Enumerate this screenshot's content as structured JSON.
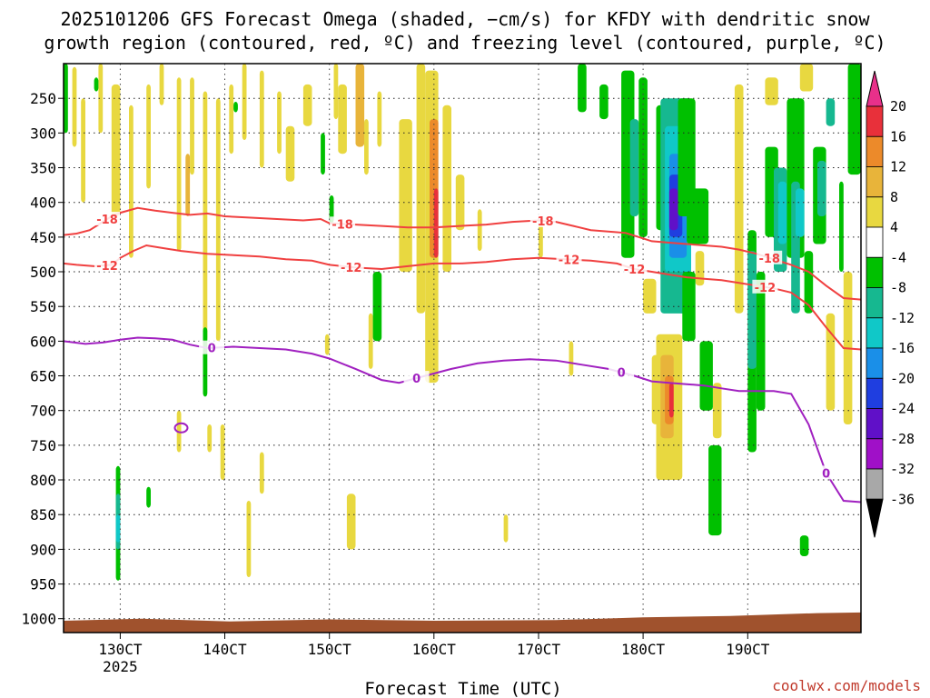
{
  "chart_data": {
    "type": "heatmap",
    "title": "2025101206 GFS Forecast Omega (shaded, −cm/s) for KFDY with dendritic snow growth region (contoured, red, ºC) and freezing level (contoured, purple, ºC)",
    "title_lines": [
      "2025101206 GFS Forecast Omega (shaded, −cm/s) for KFDY with dendritic snow",
      "growth region (contoured, red, ºC) and freezing level (contoured, purple, ºC)"
    ],
    "xlabel": "Forecast Time (UTC)",
    "credit": "coolwx.com/models",
    "x_ticks": [
      {
        "label": "130CT",
        "hour": 180
      },
      {
        "label": "140CT",
        "hour": 204
      },
      {
        "label": "150CT",
        "hour": 228
      },
      {
        "label": "160CT",
        "hour": 252
      },
      {
        "label": "170CT",
        "hour": 276
      },
      {
        "label": "180CT",
        "hour": 300
      },
      {
        "label": "190CT",
        "hour": 324
      }
    ],
    "x_year_label": "2025",
    "x_range_hours": [
      167,
      350
    ],
    "y_ticks": [
      250,
      300,
      350,
      400,
      450,
      500,
      550,
      600,
      650,
      700,
      750,
      800,
      850,
      900,
      950,
      1000
    ],
    "y_range_hpa": [
      200,
      1020
    ],
    "ground_level_hpa": 995,
    "colorbar": {
      "labels": [
        "20",
        "16",
        "12",
        "8",
        "4",
        "-4",
        "-8",
        "-12",
        "-16",
        "-20",
        "-24",
        "-28",
        "-32",
        "-36"
      ],
      "bins": [
        {
          "from": 16,
          "to": 20,
          "color": "#e8303a"
        },
        {
          "from": 12,
          "to": 16,
          "color": "#ec8a2a"
        },
        {
          "from": 8,
          "to": 12,
          "color": "#e8b43a"
        },
        {
          "from": 4,
          "to": 8,
          "color": "#e8d840"
        },
        {
          "from": -4,
          "to": 4,
          "color": "#ffffff"
        },
        {
          "from": -8,
          "to": -4,
          "color": "#00c000"
        },
        {
          "from": -12,
          "to": -8,
          "color": "#16b890"
        },
        {
          "from": -16,
          "to": -12,
          "color": "#10c8c8"
        },
        {
          "from": -20,
          "to": -16,
          "color": "#1a8fe8"
        },
        {
          "from": -24,
          "to": -20,
          "color": "#1f3ee0"
        },
        {
          "from": -28,
          "to": -24,
          "color": "#6010c8"
        },
        {
          "from": -32,
          "to": -28,
          "color": "#a010c8"
        },
        {
          "from": -36,
          "to": -32,
          "color": "#a8a8a8"
        }
      ],
      "over_color": "#e8308a",
      "under_color": "#000000"
    },
    "contours": [
      {
        "level": "-18",
        "color": "#f04040",
        "label_hours": [
          177,
          231,
          277,
          329
        ],
        "points": [
          [
            167,
            447
          ],
          [
            170,
            445
          ],
          [
            173,
            440
          ],
          [
            176,
            428
          ],
          [
            178,
            420
          ],
          [
            180,
            415
          ],
          [
            184,
            408
          ],
          [
            188,
            412
          ],
          [
            192,
            415
          ],
          [
            196,
            418
          ],
          [
            200,
            416
          ],
          [
            204,
            420
          ],
          [
            210,
            422
          ],
          [
            216,
            424
          ],
          [
            222,
            426
          ],
          [
            226,
            424
          ],
          [
            228,
            430
          ],
          [
            234,
            432
          ],
          [
            240,
            434
          ],
          [
            246,
            436
          ],
          [
            252,
            436
          ],
          [
            258,
            434
          ],
          [
            264,
            432
          ],
          [
            270,
            428
          ],
          [
            276,
            426
          ],
          [
            280,
            428
          ],
          [
            284,
            434
          ],
          [
            288,
            440
          ],
          [
            292,
            442
          ],
          [
            296,
            444
          ],
          [
            298,
            448
          ],
          [
            302,
            456
          ],
          [
            306,
            458
          ],
          [
            310,
            460
          ],
          [
            314,
            462
          ],
          [
            318,
            464
          ],
          [
            322,
            468
          ],
          [
            326,
            474
          ],
          [
            330,
            482
          ],
          [
            334,
            490
          ],
          [
            338,
            500
          ],
          [
            342,
            520
          ],
          [
            346,
            538
          ],
          [
            350,
            540
          ]
        ]
      },
      {
        "level": "-12",
        "color": "#f04040",
        "label_hours": [
          177,
          233,
          283,
          298,
          328
        ],
        "points": [
          [
            167,
            488
          ],
          [
            170,
            490
          ],
          [
            174,
            492
          ],
          [
            178,
            490
          ],
          [
            180,
            480
          ],
          [
            183,
            470
          ],
          [
            186,
            462
          ],
          [
            190,
            466
          ],
          [
            194,
            470
          ],
          [
            200,
            474
          ],
          [
            206,
            476
          ],
          [
            212,
            478
          ],
          [
            218,
            482
          ],
          [
            224,
            484
          ],
          [
            228,
            490
          ],
          [
            234,
            494
          ],
          [
            240,
            496
          ],
          [
            246,
            492
          ],
          [
            252,
            488
          ],
          [
            258,
            488
          ],
          [
            264,
            486
          ],
          [
            270,
            482
          ],
          [
            276,
            480
          ],
          [
            282,
            482
          ],
          [
            288,
            484
          ],
          [
            294,
            488
          ],
          [
            298,
            496
          ],
          [
            302,
            500
          ],
          [
            306,
            504
          ],
          [
            310,
            508
          ],
          [
            314,
            510
          ],
          [
            318,
            512
          ],
          [
            322,
            516
          ],
          [
            326,
            520
          ],
          [
            330,
            524
          ],
          [
            334,
            530
          ],
          [
            338,
            548
          ],
          [
            342,
            580
          ],
          [
            346,
            610
          ],
          [
            350,
            612
          ]
        ]
      },
      {
        "level": "0",
        "color": "#a020c0",
        "label_hours": [
          201,
          248,
          295,
          342
        ],
        "points": [
          [
            167,
            600
          ],
          [
            172,
            604
          ],
          [
            176,
            602
          ],
          [
            180,
            598
          ],
          [
            184,
            595
          ],
          [
            188,
            596
          ],
          [
            192,
            598
          ],
          [
            196,
            605
          ],
          [
            200,
            610
          ],
          [
            206,
            608
          ],
          [
            212,
            610
          ],
          [
            218,
            612
          ],
          [
            224,
            618
          ],
          [
            228,
            625
          ],
          [
            234,
            640
          ],
          [
            240,
            656
          ],
          [
            244,
            660
          ],
          [
            250,
            650
          ],
          [
            256,
            640
          ],
          [
            262,
            632
          ],
          [
            268,
            628
          ],
          [
            274,
            626
          ],
          [
            280,
            628
          ],
          [
            286,
            634
          ],
          [
            292,
            640
          ],
          [
            298,
            650
          ],
          [
            302,
            658
          ],
          [
            306,
            660
          ],
          [
            310,
            662
          ],
          [
            314,
            664
          ],
          [
            318,
            668
          ],
          [
            322,
            672
          ],
          [
            326,
            672
          ],
          [
            330,
            672
          ],
          [
            334,
            676
          ],
          [
            338,
            720
          ],
          [
            342,
            790
          ],
          [
            346,
            830
          ],
          [
            350,
            832
          ]
        ]
      }
    ],
    "small_purple_contour_hour": 194,
    "small_purple_contour_hpa": 725
  }
}
